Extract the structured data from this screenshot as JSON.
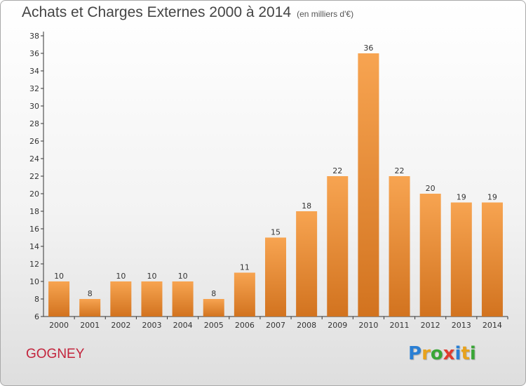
{
  "header": {
    "title": "Achats et Charges Externes 2000 à 2014",
    "subtitle": "(en milliers d'€)"
  },
  "footer": {
    "commune": "GOGNEY",
    "logo": {
      "letters": [
        "P",
        "r",
        "o",
        "x",
        "i",
        "t",
        "i"
      ],
      "colors": [
        "#2a7fd4",
        "#e8a21c",
        "#3aa637",
        "#e03c2f",
        "#2a7fd4",
        "#e8a21c",
        "#3aa637"
      ]
    }
  },
  "colors": {
    "bar_light": "#f7a451",
    "bar_dark": "#d2731f",
    "axis": "#333333",
    "commune": "#c3243c"
  },
  "chart_data": {
    "type": "bar",
    "title": "Achats et Charges Externes 2000 à 2014",
    "subtitle": "(en milliers d'€)",
    "categories": [
      "2000",
      "2001",
      "2002",
      "2003",
      "2004",
      "2005",
      "2006",
      "2007",
      "2008",
      "2009",
      "2010",
      "2011",
      "2012",
      "2013",
      "2014"
    ],
    "values": [
      10,
      8,
      10,
      10,
      10,
      8,
      11,
      15,
      18,
      22,
      36,
      22,
      20,
      19,
      19
    ],
    "ylim": [
      6,
      38
    ],
    "yticks": [
      6,
      8,
      10,
      12,
      14,
      16,
      18,
      20,
      22,
      24,
      26,
      28,
      30,
      32,
      34,
      36,
      38
    ],
    "grid": false,
    "data_labels": true
  }
}
